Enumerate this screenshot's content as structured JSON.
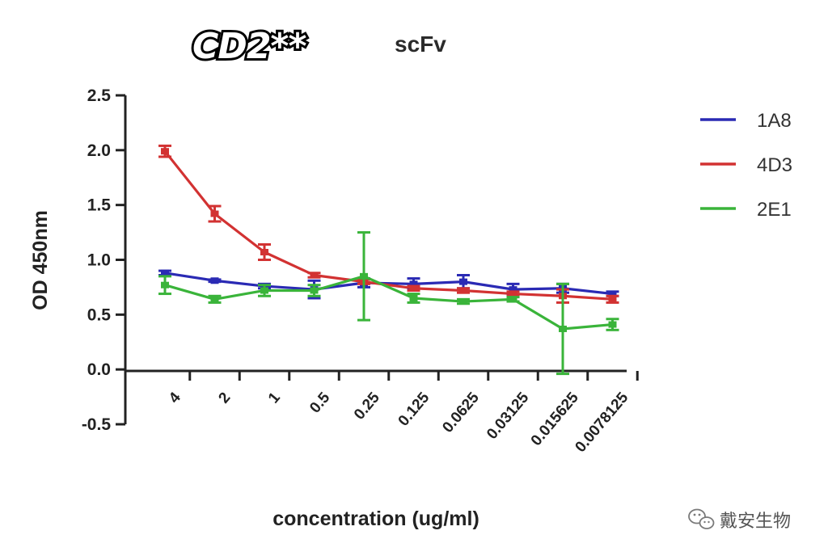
{
  "chart_data": {
    "type": "line",
    "title": "CD2**",
    "subtitle": "scFv",
    "xlabel": "concentration (ug/ml)",
    "ylabel": "OD 450nm",
    "categories": [
      "4",
      "2",
      "1",
      "0.5",
      "0.25",
      "0.125",
      "0.0625",
      "0.03125",
      "0.015625",
      "0.0078125"
    ],
    "ylim": [
      -0.5,
      2.5
    ],
    "yticks": [
      "2.5",
      "2.0",
      "1.5",
      "1.0",
      "0.5",
      "0.0",
      "-0.5"
    ],
    "grid": false,
    "legend_position": "right",
    "series": [
      {
        "name": "1A8",
        "color": "#2a2ab4",
        "values": [
          0.88,
          0.81,
          0.76,
          0.73,
          0.79,
          0.78,
          0.8,
          0.73,
          0.74,
          0.69
        ],
        "errors": [
          0.02,
          0.01,
          0.02,
          0.08,
          0.04,
          0.05,
          0.06,
          0.05,
          0.04,
          0.02
        ]
      },
      {
        "name": "4D3",
        "color": "#d23232",
        "values": [
          1.99,
          1.42,
          1.07,
          0.86,
          0.8,
          0.74,
          0.72,
          0.69,
          0.67,
          0.64
        ],
        "errors": [
          0.05,
          0.07,
          0.07,
          0.02,
          0.02,
          0.02,
          0.02,
          0.02,
          0.06,
          0.03
        ]
      },
      {
        "name": "2E1",
        "color": "#3ab43a",
        "values": [
          0.77,
          0.64,
          0.72,
          0.72,
          0.85,
          0.65,
          0.62,
          0.64,
          0.37,
          0.41
        ],
        "errors": [
          0.08,
          0.03,
          0.05,
          0.05,
          0.4,
          0.04,
          0.02,
          0.02,
          0.41,
          0.05
        ]
      }
    ]
  },
  "watermark": {
    "text": "戴安生物",
    "icon": "wechat-icon"
  }
}
